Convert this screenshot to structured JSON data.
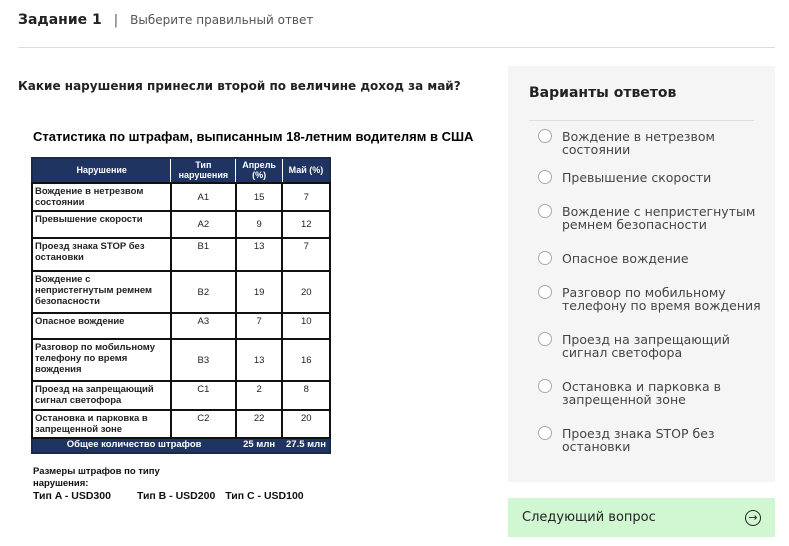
{
  "header": {
    "task": "Задание 1",
    "separator": "|",
    "subtitle": "Выберите правильный ответ"
  },
  "question": "Какие нарушения принесли второй по величине доход за май?",
  "figure": {
    "title": "Статистика по штрафам, выписанным 18-летним водителям в США",
    "columns": [
      "Нарушение",
      "Тип нарушения",
      "Апрель (%)",
      "Май (%)"
    ],
    "rows": [
      [
        "Вождение в нетрезвом состоянии",
        "A1",
        "15",
        "7"
      ],
      [
        "Превышение скорости",
        "A2",
        "9",
        "12"
      ],
      [
        "Проезд знака STOP без остановки",
        "B1",
        "13",
        "7"
      ],
      [
        "Вождение с непристегнутым ремнем безопасности",
        "B2",
        "19",
        "20"
      ],
      [
        "Опасное вождение",
        "A3",
        "7",
        "10"
      ],
      [
        "Разговор по мобильному телефону по время вождения",
        "B3",
        "13",
        "16"
      ],
      [
        "Проезд на запрещающий сигнал светофора",
        "C1",
        "2",
        "8"
      ],
      [
        "Остановка и парковка в запрещенной зоне",
        "C2",
        "22",
        "20"
      ]
    ],
    "total": {
      "label": "Общее количество штрафов",
      "april": "25 млн",
      "may": "27.5 млн"
    },
    "notes_title": "Размеры штрафов по типу нарушения:",
    "fines": [
      "Тип A - USD300",
      "Тип B - USD200",
      "Тип C - USD100"
    ]
  },
  "answers": {
    "title": "Варианты ответов",
    "options": [
      "Вождение в нетрезвом состоянии",
      "Превышение скорости",
      "Вождение с непристегнутым ремнем безопасности",
      "Опасное вождение",
      "Разговор по мобильному телефону по время вождения",
      "Проезд на запрещающий сигнал светофора",
      "Остановка и парковка в запрещенной зоне",
      "Проезд знака STOP без остановки"
    ]
  },
  "next_button": {
    "label": "Следующий вопрос",
    "icon": "arrow-right-circle-icon"
  },
  "colors": {
    "table_header": "#1f3461",
    "panel_bg": "#f5f5f5",
    "next_bg": "#d1f7d2"
  }
}
